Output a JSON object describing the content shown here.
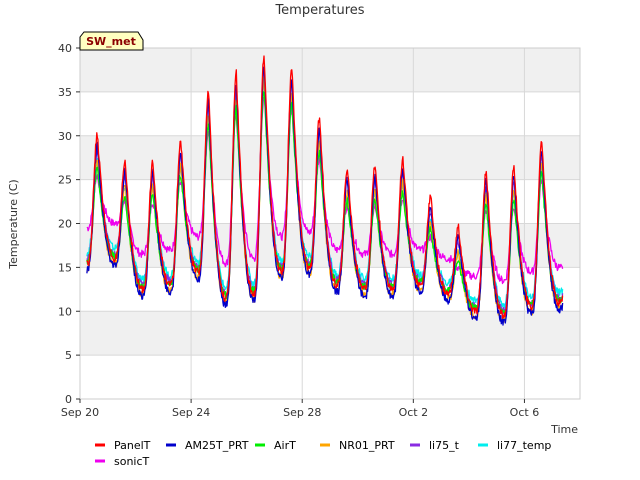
{
  "chart_data": {
    "type": "line",
    "title": "Temperatures",
    "xlabel": "Time",
    "ylabel": "Temperature (C)",
    "badge": "SW_met",
    "ylim": [
      0,
      40
    ],
    "yticks": [
      0,
      5,
      10,
      15,
      20,
      25,
      30,
      35,
      40
    ],
    "xlim": [
      "2023-09-20",
      "2023-10-08"
    ],
    "xticks": [
      {
        "date": "2023-09-20",
        "label": "Sep 20"
      },
      {
        "date": "2023-09-24",
        "label": "Sep 24"
      },
      {
        "date": "2023-09-28",
        "label": "Sep 28"
      },
      {
        "date": "2023-10-02",
        "label": "Oct 2"
      },
      {
        "date": "2023-10-06",
        "label": "Oct 6"
      }
    ],
    "grid": true,
    "legend_position": "bottom",
    "daily": {
      "dates": [
        "2023-09-20",
        "2023-09-21",
        "2023-09-22",
        "2023-09-23",
        "2023-09-24",
        "2023-09-25",
        "2023-09-26",
        "2023-09-27",
        "2023-09-28",
        "2023-09-29",
        "2023-09-30",
        "2023-10-01",
        "2023-10-02",
        "2023-10-03",
        "2023-10-04",
        "2023-10-05",
        "2023-10-06",
        "2023-10-07"
      ],
      "min": [
        15.5,
        16.0,
        12.5,
        13.0,
        14.5,
        11.5,
        12.0,
        14.5,
        15.0,
        13.0,
        12.5,
        12.5,
        13.0,
        12.0,
        10.0,
        9.5,
        10.5,
        11.0
      ],
      "max": [
        29.5,
        26.5,
        26.5,
        28.8,
        34.5,
        36.5,
        38.5,
        37.0,
        31.5,
        25.8,
        26.0,
        27.0,
        22.5,
        19.0,
        25.5,
        26.0,
        29.0,
        null
      ]
    },
    "series": [
      {
        "name": "PanelT",
        "color": "#ff0000",
        "max_offset": 0.6,
        "min_offset": 0.0
      },
      {
        "name": "AM25T_PRT",
        "color": "#0000cc",
        "max_offset": -0.6,
        "min_offset": -0.8
      },
      {
        "name": "AirT",
        "color": "#00ee00",
        "max_offset": -3.2,
        "min_offset": 0.3
      },
      {
        "name": "NR01_PRT",
        "color": "#ffa500",
        "max_offset": -2.2,
        "min_offset": -0.6
      },
      {
        "name": "li75_t",
        "color": "#8a2be2",
        "max_offset": -1.0,
        "min_offset": 0.5
      },
      {
        "name": "li77_temp",
        "color": "#00eeee",
        "max_offset": -2.4,
        "min_offset": 1.2
      },
      {
        "name": "sonicT",
        "color": "#ee00ee",
        "max_offset": -4.0,
        "min_offset": 4.0
      }
    ]
  }
}
